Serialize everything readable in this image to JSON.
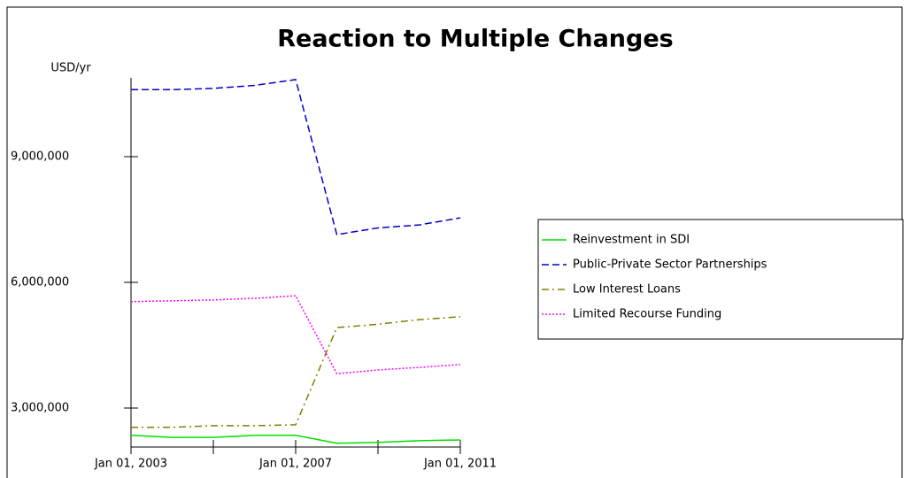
{
  "chart_data": {
    "type": "line",
    "title": "Reaction to Multiple Changes",
    "y_label": "USD/yr",
    "x": [
      2003,
      2004,
      2005,
      2006,
      2007,
      2008,
      2009,
      2010,
      2011
    ],
    "xlim": [
      2003,
      2011
    ],
    "xticks": [
      {
        "value": 2003,
        "label": "Jan 01, 2003"
      },
      {
        "value": 2007,
        "label": "Jan 01, 2007"
      },
      {
        "value": 2011,
        "label": "Jan 01, 2011"
      }
    ],
    "x_minor_ticks": [
      2005,
      2009
    ],
    "ylim": [
      2070000,
      10880000
    ],
    "yticks": [
      {
        "value": 3000000,
        "label": "3,000,000"
      },
      {
        "value": 6000000,
        "label": "6,000,000"
      },
      {
        "value": 9000000,
        "label": "9,000,000"
      }
    ],
    "series": [
      {
        "name": "Reinvestment in SDI",
        "color": "#00e000",
        "style": "solid",
        "values": [
          2350000,
          2300000,
          2300000,
          2350000,
          2350000,
          2160000,
          2180000,
          2220000,
          2240000
        ]
      },
      {
        "name": "Public-Private Sector Partnerships",
        "color": "#0000cc",
        "style": "dashed",
        "values": [
          10600000,
          10600000,
          10630000,
          10700000,
          10840000,
          7140000,
          7300000,
          7370000,
          7540000
        ]
      },
      {
        "name": "Low Interest Loans",
        "color": "#808000",
        "style": "dashdot",
        "values": [
          2540000,
          2540000,
          2580000,
          2580000,
          2600000,
          4920000,
          5000000,
          5110000,
          5180000
        ]
      },
      {
        "name": "Limited Recourse Funding",
        "color": "#ff00ff",
        "style": "dotted",
        "values": [
          5540000,
          5560000,
          5580000,
          5620000,
          5680000,
          3820000,
          3910000,
          3970000,
          4040000
        ]
      }
    ]
  }
}
